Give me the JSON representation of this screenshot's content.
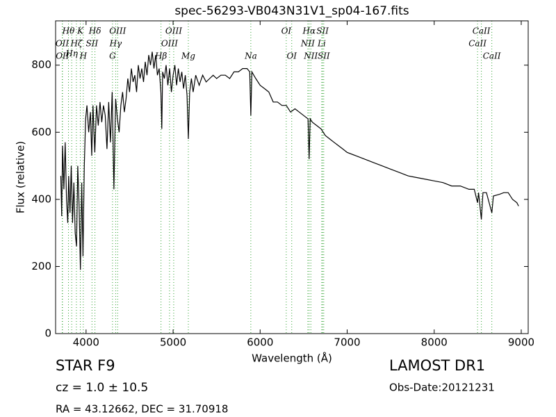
{
  "chart_data": {
    "type": "line",
    "title": "spec-56293-VB043N31V1_sp04-167.fits",
    "x_label": "Wavelength (Å)",
    "y_label": "Flux (relative)",
    "color": "#000000",
    "line_color": "#2ca02c",
    "xlim": [
      3650,
      9080
    ],
    "ylim": [
      0,
      932
    ],
    "xticks": [
      4000,
      5000,
      6000,
      7000,
      8000,
      9000
    ],
    "yticks": [
      0,
      200,
      400,
      600,
      800
    ],
    "x": [
      3710,
      3720,
      3730,
      3745,
      3760,
      3775,
      3790,
      3800,
      3815,
      3830,
      3845,
      3860,
      3875,
      3890,
      3905,
      3920,
      3935,
      3950,
      3965,
      3980,
      3995,
      4010,
      4030,
      4050,
      4065,
      4080,
      4100,
      4120,
      4140,
      4160,
      4180,
      4200,
      4220,
      4240,
      4260,
      4280,
      4300,
      4320,
      4340,
      4360,
      4380,
      4400,
      4420,
      4440,
      4460,
      4480,
      4500,
      4520,
      4540,
      4560,
      4580,
      4600,
      4620,
      4640,
      4660,
      4680,
      4700,
      4720,
      4740,
      4760,
      4780,
      4800,
      4820,
      4840,
      4860,
      4870,
      4880,
      4900,
      4920,
      4940,
      4960,
      4980,
      5000,
      5020,
      5040,
      5060,
      5080,
      5100,
      5120,
      5140,
      5160,
      5175,
      5190,
      5210,
      5230,
      5260,
      5300,
      5340,
      5380,
      5420,
      5460,
      5500,
      5550,
      5600,
      5650,
      5700,
      5750,
      5800,
      5850,
      5880,
      5893,
      5905,
      5950,
      6000,
      6050,
      6100,
      6150,
      6200,
      6250,
      6300,
      6350,
      6400,
      6450,
      6500,
      6550,
      6563,
      6575,
      6600,
      6650,
      6700,
      6750,
      6800,
      6850,
      6900,
      6950,
      7000,
      7100,
      7200,
      7300,
      7400,
      7500,
      7600,
      7700,
      7800,
      7900,
      8000,
      8100,
      8200,
      8300,
      8400,
      8460,
      8498,
      8510,
      8542,
      8560,
      8600,
      8662,
      8680,
      8750,
      8800,
      8850,
      8900,
      8950,
      8970
    ],
    "values": [
      470,
      350,
      560,
      430,
      570,
      400,
      330,
      470,
      360,
      500,
      330,
      450,
      300,
      260,
      500,
      380,
      190,
      450,
      230,
      500,
      640,
      680,
      600,
      660,
      530,
      680,
      540,
      680,
      620,
      690,
      630,
      680,
      650,
      550,
      690,
      570,
      720,
      430,
      700,
      640,
      600,
      680,
      720,
      660,
      700,
      760,
      720,
      790,
      750,
      770,
      720,
      800,
      760,
      790,
      750,
      810,
      770,
      830,
      800,
      840,
      790,
      830,
      770,
      790,
      720,
      610,
      780,
      760,
      800,
      740,
      790,
      720,
      770,
      800,
      740,
      790,
      750,
      780,
      730,
      770,
      710,
      580,
      720,
      760,
      720,
      770,
      740,
      770,
      750,
      760,
      770,
      760,
      770,
      770,
      760,
      780,
      780,
      790,
      790,
      780,
      650,
      780,
      760,
      740,
      730,
      720,
      690,
      690,
      680,
      680,
      660,
      670,
      660,
      650,
      640,
      520,
      640,
      630,
      620,
      610,
      590,
      580,
      570,
      560,
      550,
      540,
      530,
      520,
      510,
      500,
      490,
      480,
      470,
      465,
      460,
      455,
      450,
      440,
      440,
      430,
      430,
      390,
      420,
      340,
      420,
      420,
      360,
      410,
      415,
      420,
      420,
      400,
      390,
      380
    ],
    "annotations": [
      {
        "label": "Hθ",
        "x": 3798
      },
      {
        "label": "K",
        "x": 3934
      },
      {
        "label": "Hδ",
        "x": 4102
      },
      {
        "label": "OIII",
        "x": 4363
      },
      {
        "label": "OIII",
        "x": 5007
      },
      {
        "label": "OI",
        "x": 6300
      },
      {
        "label": "Hα",
        "x": 6563
      },
      {
        "label": "SII",
        "x": 6717
      },
      {
        "label": "CaII",
        "x": 8542
      },
      {
        "label": "OII",
        "x": 3726
      },
      {
        "label": "Hζ",
        "x": 3889
      },
      {
        "label": "SII",
        "x": 4068
      },
      {
        "label": "Hγ",
        "x": 4340
      },
      {
        "label": "OIII",
        "x": 4959
      },
      {
        "label": "NII",
        "x": 6548
      },
      {
        "label": "Li",
        "x": 6708
      },
      {
        "label": "CaII",
        "x": 8498
      },
      {
        "label": "Hη",
        "x": 3835
      },
      {
        "label": "OII",
        "x": 3729
      },
      {
        "label": "H",
        "x": 3968
      },
      {
        "label": "G",
        "x": 4304
      },
      {
        "label": "Hβ",
        "x": 4861
      },
      {
        "label": "Mg",
        "x": 5175
      },
      {
        "label": "Na",
        "x": 5893
      },
      {
        "label": "OI",
        "x": 6363
      },
      {
        "label": "NII",
        "x": 6583
      },
      {
        "label": "SII",
        "x": 6731
      },
      {
        "label": "CaII",
        "x": 8662
      }
    ],
    "footer": {
      "class_text": "STAR   F9",
      "redshift": "cz = 1.0 ± 10.5",
      "coords": "RA = 43.12662, DEC = 31.70918",
      "survey": "LAMOST DR1",
      "obs_date": "Obs-Date:20121231"
    }
  }
}
